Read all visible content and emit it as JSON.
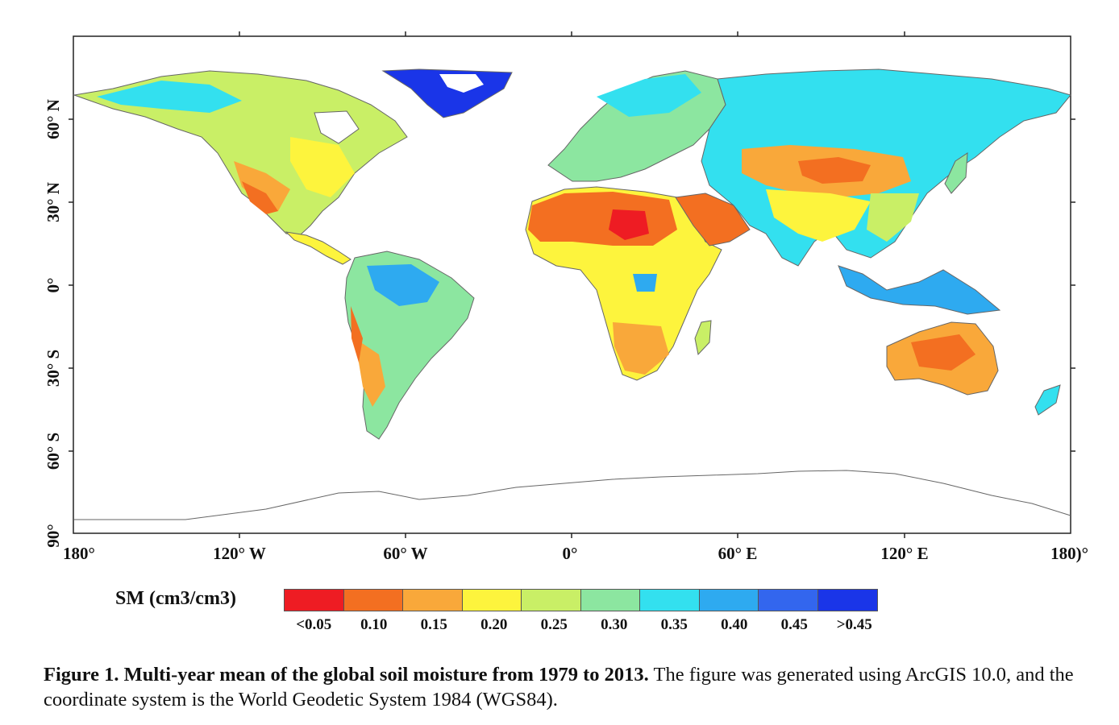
{
  "map": {
    "lon_ticks": [
      "180°",
      "120° W",
      "60° W",
      "0°",
      "60° E",
      "120° E",
      "180)°"
    ],
    "lat_ticks": [
      "90°",
      "60° S",
      "30° S",
      "0°",
      "30° N",
      "60° N"
    ]
  },
  "legend": {
    "title": "SM (cm3/cm3)",
    "classes": [
      {
        "label": "<0.05",
        "color": "#ee1c23"
      },
      {
        "label": "0.10",
        "color": "#f36f21"
      },
      {
        "label": "0.15",
        "color": "#f9a83a"
      },
      {
        "label": "0.20",
        "color": "#fdf43d"
      },
      {
        "label": "0.25",
        "color": "#c9ef66"
      },
      {
        "label": "0.30",
        "color": "#8ce6a0"
      },
      {
        "label": "0.35",
        "color": "#33e0ef"
      },
      {
        "label": "0.40",
        "color": "#2eaaf0"
      },
      {
        "label": "0.45",
        "color": "#3366ee"
      },
      {
        "label": ">0.45",
        "color": "#1a35e8"
      }
    ]
  },
  "caption": {
    "lead": "Figure 1.  Multi-year mean of the global soil moisture from 1979 to 2013.",
    "text": " The figure was generated using ArcGIS 10.0, and the coordinate system is the World Geodetic System 1984 (WGS84)."
  }
}
